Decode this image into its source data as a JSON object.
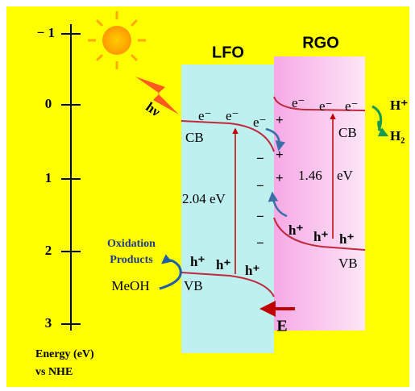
{
  "axis": {
    "ticks": [
      "− 1",
      "0",
      "1",
      "2",
      "3"
    ],
    "label": [
      "Energy (eV)",
      "vs NHE"
    ]
  },
  "lfo": {
    "title": "LFO",
    "cb": "CB",
    "vb": "VB",
    "gap": "2.04 eV",
    "electrons": [
      "e⁻",
      "e⁻",
      "e⁻"
    ],
    "holes": [
      "h⁺",
      "h⁺",
      "h⁺"
    ]
  },
  "rgo": {
    "title": "RGO",
    "cb": "CB",
    "vb": "VB",
    "gap": "1.46 eV",
    "electrons": [
      "e⁻",
      "e⁻",
      "e⁻"
    ],
    "holes": [
      "h⁺",
      "h⁺",
      "h⁺"
    ]
  },
  "light": "hν",
  "charges": {
    "plus": [
      "+",
      "+",
      "+"
    ],
    "minus": [
      "−",
      "−",
      "−",
      "−"
    ]
  },
  "reduction": {
    "reactant": "H⁺",
    "product": "H₂"
  },
  "oxidation": {
    "products": [
      "Oxidation",
      "Products"
    ],
    "reactant": "MeOH"
  },
  "field": "E"
}
